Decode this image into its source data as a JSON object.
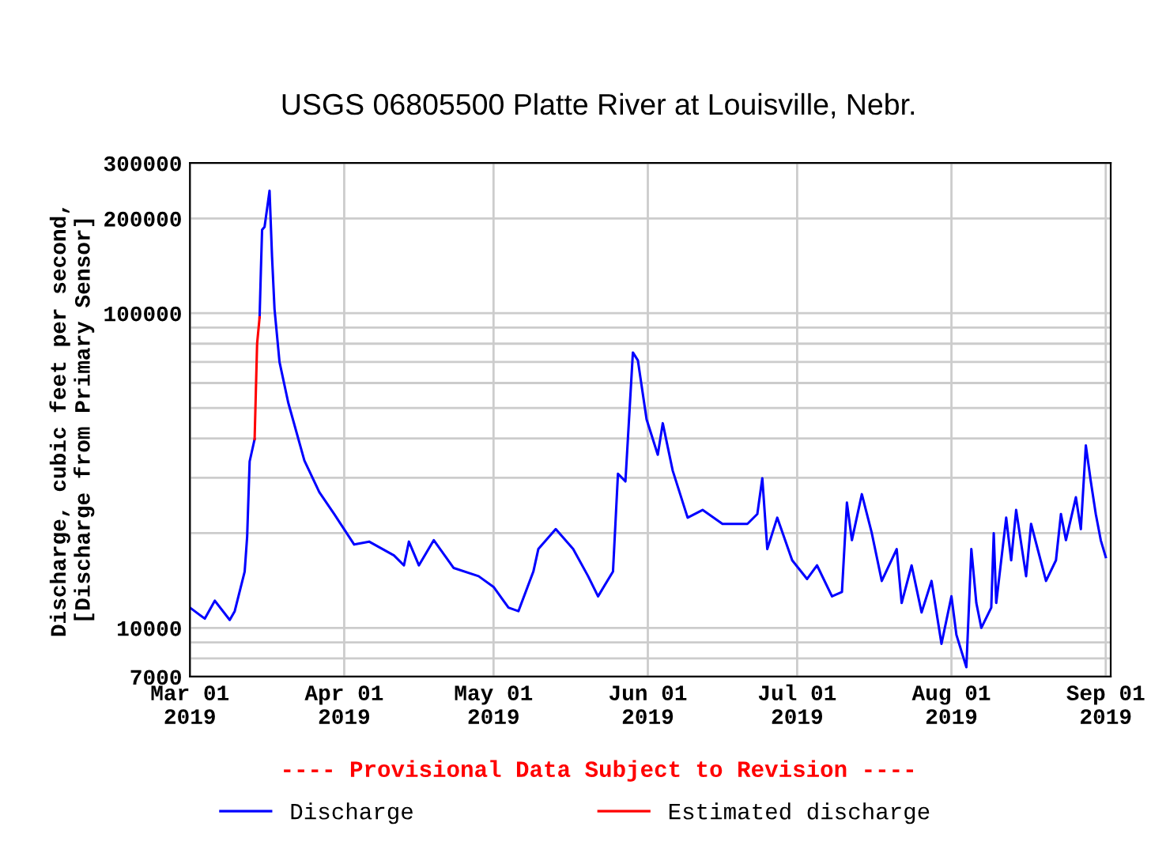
{
  "chart_data": {
    "type": "line",
    "title": "USGS 06805500 Platte River at Louisville, Nebr.",
    "ylabel": "Discharge, cubic feet per second,\n[Discharge from Primary Sensor]",
    "annotations": [
      "---- Provisional Data Subject to Revision ----"
    ],
    "log": "y",
    "grid": true,
    "legend": "bottom",
    "line_style": "solid",
    "marker": "none",
    "xlim": [
      "2019-03-01",
      "2019-09-02"
    ],
    "xticks": [
      {
        "value": "2019-03-01",
        "label": "Mar 01\n2019"
      },
      {
        "value": "2019-04-01",
        "label": "Apr 01\n2019"
      },
      {
        "value": "2019-05-01",
        "label": "May 01\n2019"
      },
      {
        "value": "2019-06-01",
        "label": "Jun 01\n2019"
      },
      {
        "value": "2019-07-01",
        "label": "Jul 01\n2019"
      },
      {
        "value": "2019-08-01",
        "label": "Aug 01\n2019"
      },
      {
        "value": "2019-09-01",
        "label": "Sep 01\n2019"
      }
    ],
    "ylim": [
      7000,
      300000
    ],
    "yticks": [
      7000,
      {
        "value": 8000,
        "label": null
      },
      {
        "value": 9000,
        "label": null
      },
      10000,
      {
        "value": 20000,
        "label": null
      },
      {
        "value": 30000,
        "label": null
      },
      {
        "value": 40000,
        "label": null
      },
      {
        "value": 50000,
        "label": null
      },
      {
        "value": 60000,
        "label": null
      },
      {
        "value": 70000,
        "label": null
      },
      {
        "value": 80000,
        "label": null
      },
      {
        "value": 90000,
        "label": null
      },
      100000,
      200000,
      300000
    ],
    "series": [
      {
        "name": "Discharge",
        "color": "#0000ff",
        "x": [
          "2019-03-01",
          "2019-03-04",
          "2019-03-06",
          "2019-03-09",
          "2019-03-10",
          "2019-03-12",
          "2019-03-12T12:00",
          "2019-03-13",
          "2019-03-14",
          "2019-03-14T12:00",
          "2019-03-15",
          "2019-03-15T06:00",
          "2019-03-15T12:00",
          "2019-03-16",
          "2019-03-17",
          "2019-03-17T12:00",
          "2019-03-18",
          "2019-03-19",
          "2019-03-20T18:00",
          "2019-03-24",
          "2019-03-27",
          "2019-03-30",
          "2019-04-03",
          "2019-04-06",
          "2019-04-11",
          "2019-04-13",
          "2019-04-14",
          "2019-04-16",
          "2019-04-19",
          "2019-04-23",
          "2019-04-28",
          "2019-05-01",
          "2019-05-04",
          "2019-05-06",
          "2019-05-09",
          "2019-05-10",
          "2019-05-13T12:00",
          "2019-05-17",
          "2019-05-20",
          "2019-05-22",
          "2019-05-25",
          "2019-05-26",
          "2019-05-27T12:00",
          "2019-05-29",
          "2019-05-30",
          "2019-05-31T18:00",
          "2019-06-03",
          "2019-06-04",
          "2019-06-06",
          "2019-06-09",
          "2019-06-12",
          "2019-06-16",
          "2019-06-21",
          "2019-06-23",
          "2019-06-24",
          "2019-06-25",
          "2019-06-27",
          "2019-06-30",
          "2019-07-03",
          "2019-07-05",
          "2019-07-08",
          "2019-07-10",
          "2019-07-11",
          "2019-07-12",
          "2019-07-14",
          "2019-07-16",
          "2019-07-18",
          "2019-07-21",
          "2019-07-22",
          "2019-07-24",
          "2019-07-26",
          "2019-07-28",
          "2019-07-30",
          "2019-08-01",
          "2019-08-02",
          "2019-08-04",
          "2019-08-05",
          "2019-08-06",
          "2019-08-07",
          "2019-08-09",
          "2019-08-09T12:00",
          "2019-08-10",
          "2019-08-12",
          "2019-08-13",
          "2019-08-14",
          "2019-08-16",
          "2019-08-17",
          "2019-08-20",
          "2019-08-22",
          "2019-08-23",
          "2019-08-24",
          "2019-08-26",
          "2019-08-27",
          "2019-08-28",
          "2019-08-29",
          "2019-08-30",
          "2019-08-31",
          "2019-09-01"
        ],
        "values": [
          11600,
          10700,
          12200,
          10600,
          11300,
          15100,
          19500,
          33800,
          39800,
          null,
          97000,
          135000,
          184000,
          188000,
          245000,
          151000,
          103000,
          70000,
          52000,
          34000,
          27000,
          23000,
          18400,
          18800,
          17000,
          15800,
          18800,
          15800,
          19000,
          15500,
          14600,
          13500,
          11600,
          11300,
          15100,
          17800,
          20600,
          17800,
          14600,
          12600,
          15100,
          30900,
          29200,
          75000,
          70800,
          46000,
          35500,
          44700,
          31600,
          22400,
          23700,
          21400,
          21400,
          23000,
          29900,
          17800,
          22400,
          16400,
          14300,
          15800,
          12600,
          13000,
          25000,
          19000,
          26600,
          20000,
          14100,
          17800,
          12000,
          15800,
          11200,
          14100,
          8900,
          12600,
          9500,
          7500,
          17800,
          12000,
          10000,
          11600,
          20000,
          12000,
          22400,
          16400,
          23700,
          14600,
          21400,
          14100,
          16400,
          23000,
          19000,
          26000,
          20600,
          38000,
          29200,
          23000,
          19000,
          16800
        ]
      },
      {
        "name": "Estimated discharge",
        "color": "#ff0000",
        "x": [
          "2019-03-14",
          "2019-03-14T12:00",
          "2019-03-15"
        ],
        "values": [
          39800,
          80000,
          97000
        ]
      }
    ]
  }
}
